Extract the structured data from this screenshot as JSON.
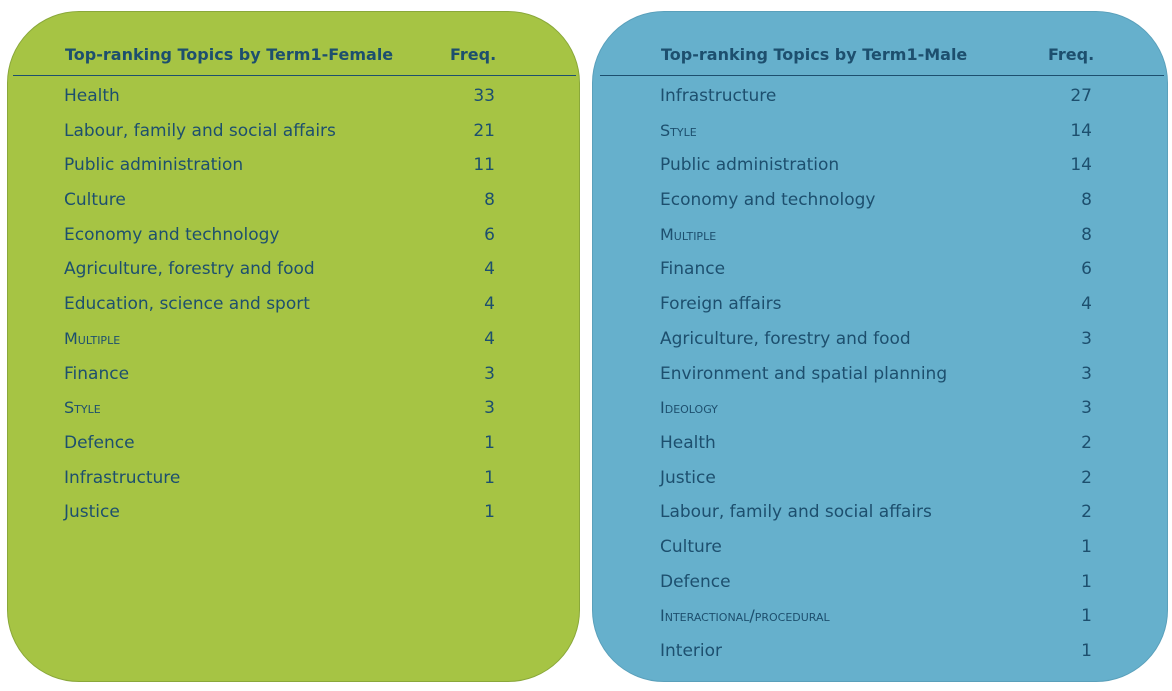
{
  "female": {
    "title": "Top-ranking Topics by Term1-Female",
    "freq_header": "Freq.",
    "rows": [
      {
        "topic": "Health",
        "value": "33",
        "caps": false
      },
      {
        "topic": "Labour, family and social affairs",
        "value": "21",
        "caps": false
      },
      {
        "topic": "Public administration",
        "value": "11",
        "caps": false
      },
      {
        "topic": "Culture",
        "value": "8",
        "caps": false
      },
      {
        "topic": "Economy and technology",
        "value": "6",
        "caps": false
      },
      {
        "topic": "Agriculture, forestry and food",
        "value": "4",
        "caps": false
      },
      {
        "topic": "Education, science and sport",
        "value": "4",
        "caps": false
      },
      {
        "topic": "Multiple",
        "value": "4",
        "caps": true
      },
      {
        "topic": "Finance",
        "value": "3",
        "caps": false
      },
      {
        "topic": "Style",
        "value": "3",
        "caps": true
      },
      {
        "topic": "Defence",
        "value": "1",
        "caps": false
      },
      {
        "topic": "Infrastructure",
        "value": "1",
        "caps": false
      },
      {
        "topic": "Justice",
        "value": "1",
        "caps": false
      }
    ]
  },
  "male": {
    "title": "Top-ranking Topics by Term1-Male",
    "freq_header": "Freq.",
    "rows": [
      {
        "topic": "Infrastructure",
        "value": "27",
        "caps": false
      },
      {
        "topic": "Style",
        "value": "14",
        "caps": true
      },
      {
        "topic": "Public administration",
        "value": "14",
        "caps": false
      },
      {
        "topic": "Economy and technology",
        "value": "8",
        "caps": false
      },
      {
        "topic": "Multiple",
        "value": "8",
        "caps": true
      },
      {
        "topic": "Finance",
        "value": "6",
        "caps": false
      },
      {
        "topic": "Foreign affairs",
        "value": "4",
        "caps": false
      },
      {
        "topic": "Agriculture, forestry and food",
        "value": "3",
        "caps": false
      },
      {
        "topic": "Environment and spatial planning",
        "value": "3",
        "caps": false
      },
      {
        "topic": "Ideology",
        "value": "3",
        "caps": true
      },
      {
        "topic": "Health",
        "value": "2",
        "caps": false
      },
      {
        "topic": "Justice",
        "value": "2",
        "caps": false
      },
      {
        "topic": "Labour, family and social affairs",
        "value": "2",
        "caps": false
      },
      {
        "topic": "Culture",
        "value": "1",
        "caps": false
      },
      {
        "topic": "Defence",
        "value": "1",
        "caps": false
      },
      {
        "topic": "Interactional/procedural",
        "value": "1",
        "caps": true
      },
      {
        "topic": "Interior",
        "value": "1",
        "caps": false
      }
    ]
  },
  "colors": {
    "female_panel": "#a6c444",
    "male_panel": "#66b0cc",
    "text": "#1d4f6e"
  }
}
